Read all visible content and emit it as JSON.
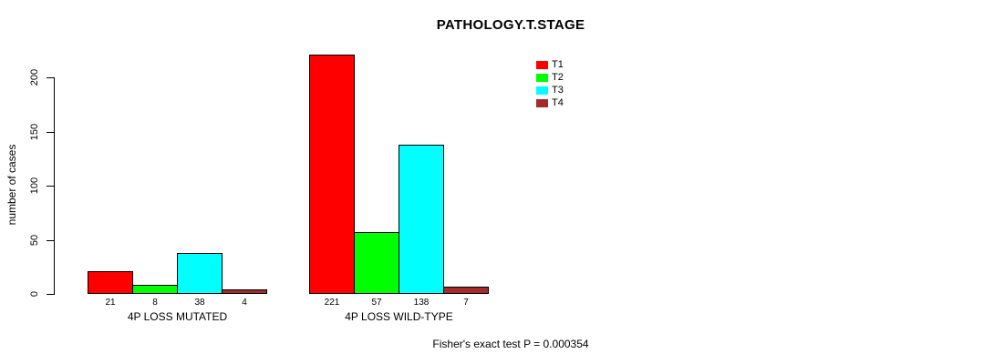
{
  "chart_data": {
    "type": "bar",
    "title": "PATHOLOGY.T.STAGE",
    "ylabel": "number of cases",
    "xlabel": "",
    "ylim": [
      0,
      200
    ],
    "yticks": [
      0,
      50,
      100,
      150,
      200
    ],
    "grid": false,
    "legend_position": "top-right",
    "categories": [
      "4P LOSS MUTATED",
      "4P LOSS WILD-TYPE"
    ],
    "series": [
      {
        "name": "T1",
        "color": "#ff0000",
        "values": [
          21,
          221
        ]
      },
      {
        "name": "T2",
        "color": "#00ff00",
        "values": [
          8,
          57
        ]
      },
      {
        "name": "T3",
        "color": "#00ffff",
        "values": [
          38,
          138
        ]
      },
      {
        "name": "T4",
        "color": "#a52a2a",
        "values": [
          4,
          7
        ]
      }
    ],
    "annotation": "Fisher's exact test P = 0.000354"
  }
}
